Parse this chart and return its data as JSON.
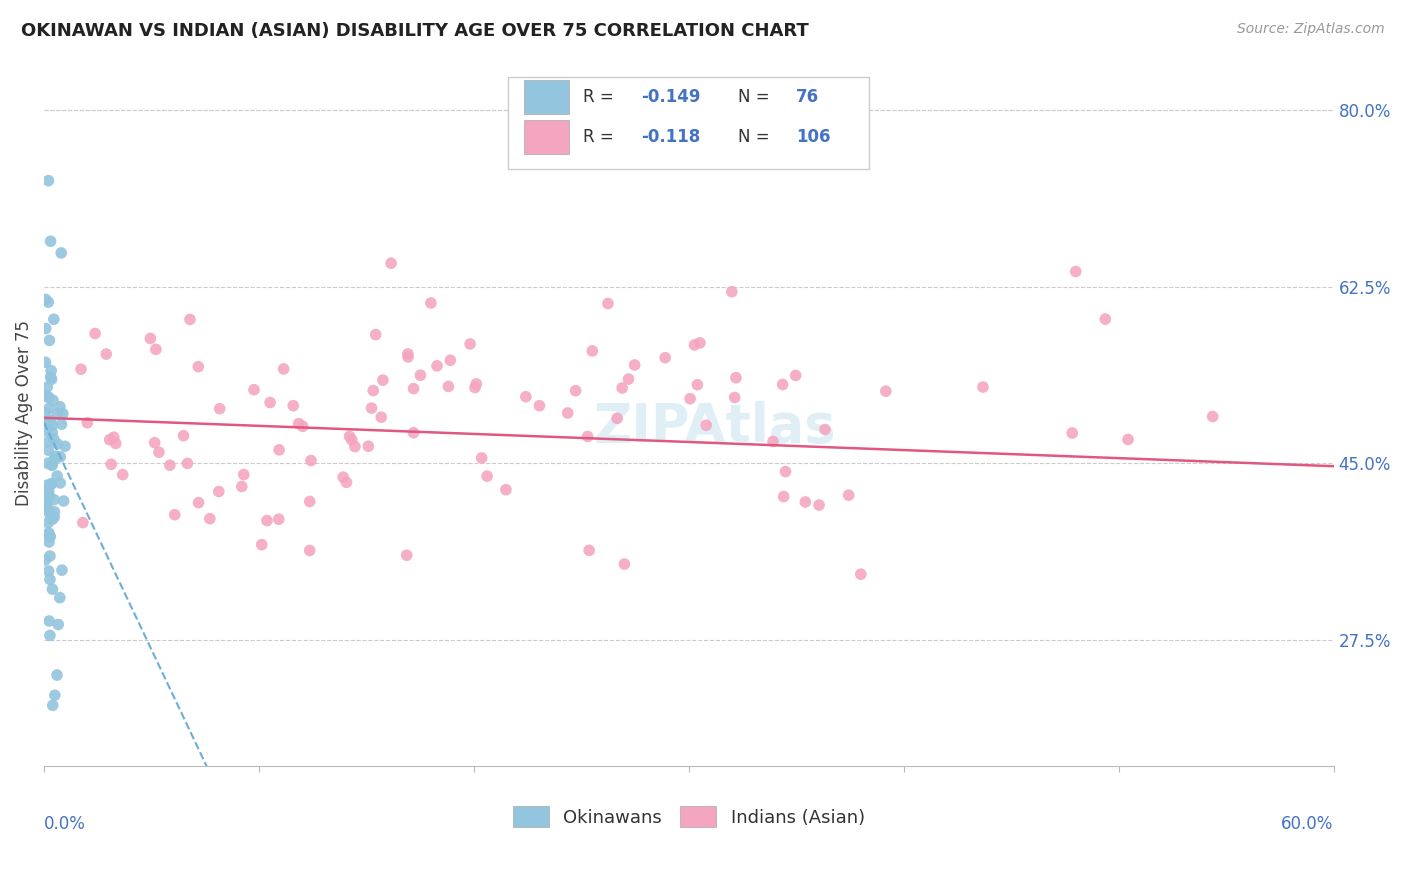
{
  "title": "OKINAWAN VS INDIAN (ASIAN) DISABILITY AGE OVER 75 CORRELATION CHART",
  "source": "Source: ZipAtlas.com",
  "ylabel": "Disability Age Over 75",
  "right_yticks": [
    27.5,
    45.0,
    62.5,
    80.0
  ],
  "xlim": [
    0.0,
    0.6
  ],
  "ylim": [
    0.15,
    0.85
  ],
  "okinawan_color": "#92c5de",
  "indian_color": "#f4a6c0",
  "trend_indian_color": "#e05880",
  "trend_okinawan_color": "#6baed6",
  "okinawan_R": -0.149,
  "okinawan_N": 76,
  "indian_R": -0.118,
  "indian_N": 106,
  "watermark": "ZIPAtlas",
  "background_color": "#ffffff",
  "grid_color": "#cccccc"
}
